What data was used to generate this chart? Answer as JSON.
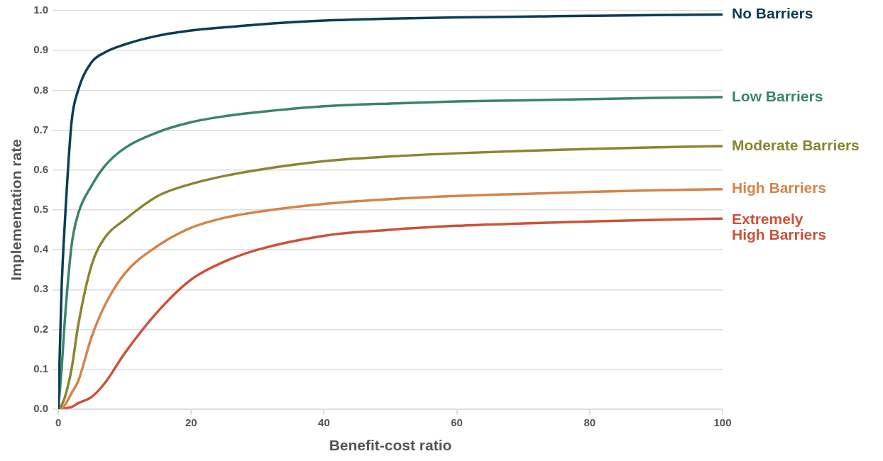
{
  "chart_data": {
    "type": "line",
    "xlabel": "Benefit-cost ratio",
    "ylabel": "Implementation rate",
    "xlim": [
      0,
      100
    ],
    "xticks": [
      0,
      20,
      40,
      60,
      80,
      100
    ],
    "ylim": [
      0,
      1
    ],
    "yticks": [
      {
        "value": 0,
        "label": "0.0"
      },
      {
        "value": 0.1,
        "label": "0.1"
      },
      {
        "value": 0.2,
        "label": "0.2"
      },
      {
        "value": 0.3,
        "label": "0.3"
      },
      {
        "value": 0.4,
        "label": "0.4"
      },
      {
        "value": 0.5,
        "label": "0.5"
      },
      {
        "value": 0.6,
        "label": "0.6"
      },
      {
        "value": 0.7,
        "label": "0.7"
      },
      {
        "value": 0.8,
        "label": "0.8"
      },
      {
        "value": 0.9,
        "label": "0.9"
      },
      {
        "value": 1,
        "label": "1.0"
      }
    ],
    "grid": "y",
    "legend": false,
    "marker": "none",
    "line_style": "solid",
    "x": [
      0,
      0.5,
      1,
      2,
      3,
      5,
      7,
      10,
      15,
      20,
      25,
      30,
      40,
      50,
      60,
      70,
      80,
      90,
      100
    ],
    "series": [
      {
        "name": "No Barriers",
        "color": "#0b3d55",
        "values": [
          0,
          0.3,
          0.47,
          0.72,
          0.8,
          0.87,
          0.895,
          0.915,
          0.937,
          0.95,
          0.958,
          0.965,
          0.975,
          0.98,
          0.983,
          0.985,
          0.987,
          0.989,
          0.99
        ]
      },
      {
        "name": "Low Barriers",
        "color": "#3a8566",
        "values": [
          0,
          0.1,
          0.225,
          0.41,
          0.49,
          0.56,
          0.61,
          0.655,
          0.695,
          0.72,
          0.735,
          0.745,
          0.76,
          0.767,
          0.772,
          0.775,
          0.778,
          0.781,
          0.783
        ]
      },
      {
        "name": "Moderate Barriers",
        "color": "#8b8530",
        "values": [
          0,
          0.01,
          0.03,
          0.1,
          0.21,
          0.36,
          0.43,
          0.475,
          0.535,
          0.565,
          0.585,
          0.6,
          0.622,
          0.634,
          0.642,
          0.648,
          0.653,
          0.657,
          0.66
        ]
      },
      {
        "name": "High Barriers",
        "color": "#d4844a",
        "values": [
          0,
          0.003,
          0.01,
          0.04,
          0.07,
          0.18,
          0.26,
          0.34,
          0.41,
          0.455,
          0.48,
          0.495,
          0.515,
          0.527,
          0.535,
          0.54,
          0.545,
          0.549,
          0.552
        ]
      },
      {
        "name": "Extremely High Barriers",
        "color": "#cc5239",
        "values": [
          0,
          0,
          0.002,
          0.005,
          0.015,
          0.03,
          0.065,
          0.14,
          0.245,
          0.325,
          0.37,
          0.4,
          0.435,
          0.45,
          0.46,
          0.466,
          0.471,
          0.475,
          0.478
        ]
      }
    ]
  }
}
